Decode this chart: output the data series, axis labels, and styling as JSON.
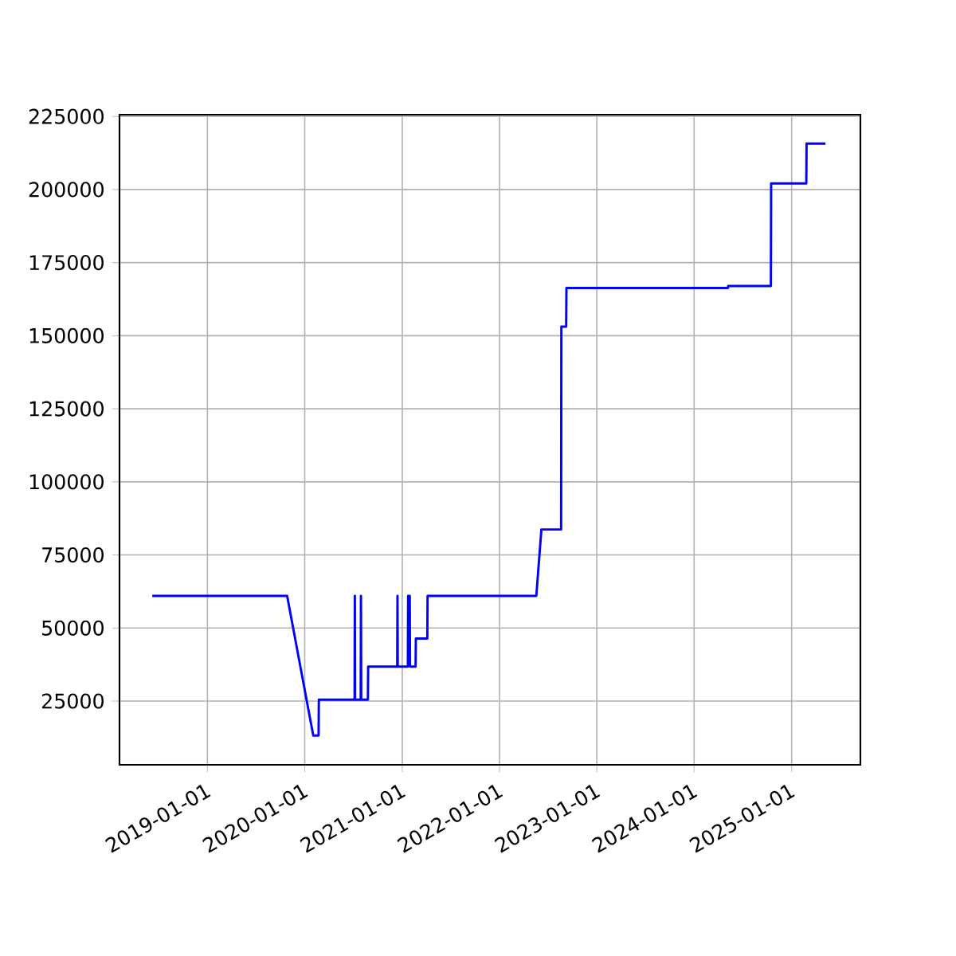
{
  "chart_data": {
    "type": "line",
    "color": "#0000ff",
    "grid": true,
    "xlim": [
      "2018-02-05",
      "2025-09-16"
    ],
    "xticks": [
      "2019-01-01",
      "2020-01-01",
      "2021-01-01",
      "2022-01-01",
      "2023-01-01",
      "2024-01-01",
      "2025-01-01"
    ],
    "ylim": [
      3200,
      225600
    ],
    "yticks": [
      25000,
      50000,
      75000,
      100000,
      125000,
      150000,
      175000,
      200000,
      225000
    ],
    "x": [
      "2018-06-08",
      "2019-10-27",
      "2020-02-02",
      "2020-02-22",
      "2020-02-23",
      "2020-07-06",
      "2020-07-07",
      "2020-07-08",
      "2020-07-29",
      "2020-07-30",
      "2020-07-31",
      "2020-08-25",
      "2020-08-26",
      "2020-12-13",
      "2020-12-14",
      "2020-12-15",
      "2021-01-22",
      "2021-01-23",
      "2021-01-29",
      "2021-01-30",
      "2021-02-20",
      "2021-02-21",
      "2021-04-05",
      "2021-04-06",
      "2022-05-19",
      "2022-06-07",
      "2022-08-20",
      "2022-08-21",
      "2022-09-08",
      "2022-09-09",
      "2024-05-07",
      "2024-05-08",
      "2024-10-15",
      "2024-10-16",
      "2025-02-25",
      "2025-02-26",
      "2025-05-08"
    ],
    "values": [
      61000,
      61000,
      13200,
      13200,
      25500,
      25500,
      61000,
      25500,
      25500,
      61000,
      25500,
      25500,
      36800,
      36800,
      61000,
      36800,
      36800,
      61000,
      61000,
      36800,
      36800,
      46400,
      46400,
      61000,
      61000,
      83700,
      83700,
      153100,
      153100,
      166300,
      166300,
      167000,
      167000,
      202100,
      202100,
      215700,
      215700
    ]
  }
}
